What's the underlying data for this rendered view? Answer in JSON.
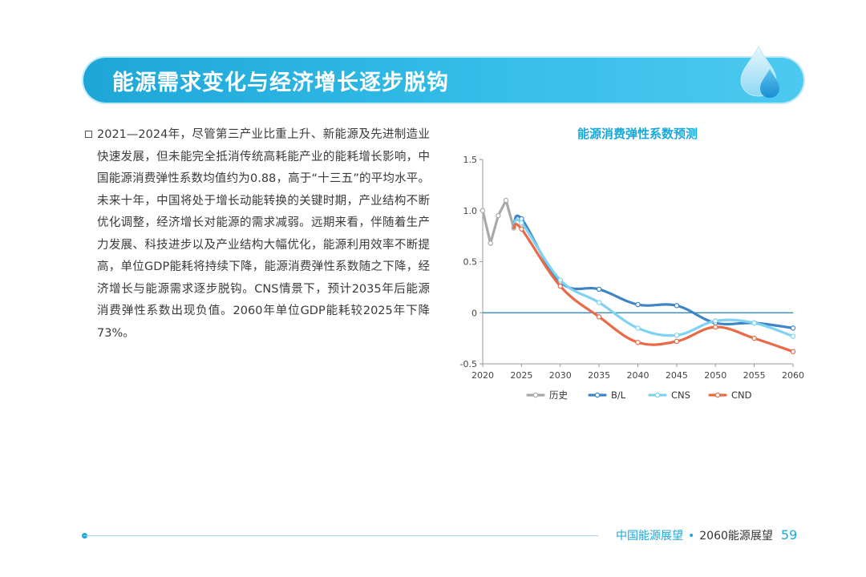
{
  "header": {
    "title": "能源需求变化与经济增长逐步脱钩"
  },
  "body": {
    "paragraph": "2021—2024年，尽管第三产业比重上升、新能源及先进制造业快速发展，但未能完全抵消传统高耗能产业的能耗增长影响，中国能源消费弹性系数均值约为0.88，高于“十三五”的平均水平。未来十年，中国将处于增长动能转换的关键时期，产业结构不断优化调整，经济增长对能源的需求减弱。远期来看，伴随着生产力发展、科技进步以及产业结构大幅优化，能源利用效率不断提高，单位GDP能耗将持续下降，能源消费弹性系数随之下降，经济增长与能源需求逐步脱钩。CNS情景下，预计2035年后能源消费弹性系数出现负值。2060年单位GDP能耗较2025年下降73%。"
  },
  "chart_data": {
    "type": "line",
    "title": "能源消费弹性系数预测",
    "xlabel": "",
    "ylabel": "",
    "xlim": [
      2020,
      2060
    ],
    "ylim": [
      -0.5,
      1.5
    ],
    "x_ticks": [
      "2020",
      "2025",
      "2030",
      "2035",
      "2040",
      "2045",
      "2050",
      "2055",
      "2060"
    ],
    "y_ticks": [
      "1.5",
      "1.0",
      "0.5",
      "0",
      "-0.5"
    ],
    "legend_position": "bottom",
    "series": [
      {
        "name": "历史",
        "color": "#a9a9a9",
        "x": [
          2020,
          2021,
          2022,
          2023,
          2024
        ],
        "y": [
          1.0,
          0.68,
          0.95,
          1.1,
          0.83
        ]
      },
      {
        "name": "B/L",
        "color": "#3d85c6",
        "x": [
          2024,
          2025,
          2030,
          2035,
          2040,
          2045,
          2050,
          2055,
          2060
        ],
        "y": [
          0.83,
          0.92,
          0.3,
          0.23,
          0.08,
          0.07,
          -0.1,
          -0.1,
          -0.15
        ]
      },
      {
        "name": "CNS",
        "color": "#7fd3f2",
        "x": [
          2024,
          2025,
          2030,
          2035,
          2040,
          2045,
          2050,
          2055,
          2060
        ],
        "y": [
          0.83,
          0.88,
          0.32,
          0.1,
          -0.15,
          -0.22,
          -0.08,
          -0.1,
          -0.23
        ]
      },
      {
        "name": "CND",
        "color": "#ea6a47",
        "x": [
          2024,
          2025,
          2030,
          2035,
          2040,
          2045,
          2050,
          2055,
          2060
        ],
        "y": [
          0.83,
          0.82,
          0.26,
          -0.04,
          -0.29,
          -0.28,
          -0.14,
          -0.25,
          -0.38
        ]
      }
    ]
  },
  "footer": {
    "brand": "中国能源展望",
    "separator": "•",
    "subtitle": "2060能源展望",
    "page": "59"
  },
  "icons": {
    "banner_icon": "water-drop-icon",
    "bullet_icon": "square-bullet-icon"
  },
  "colors": {
    "accent": "#1aa8d9",
    "banner_start": "#1ea6d8",
    "banner_end": "#4cc9f0"
  }
}
